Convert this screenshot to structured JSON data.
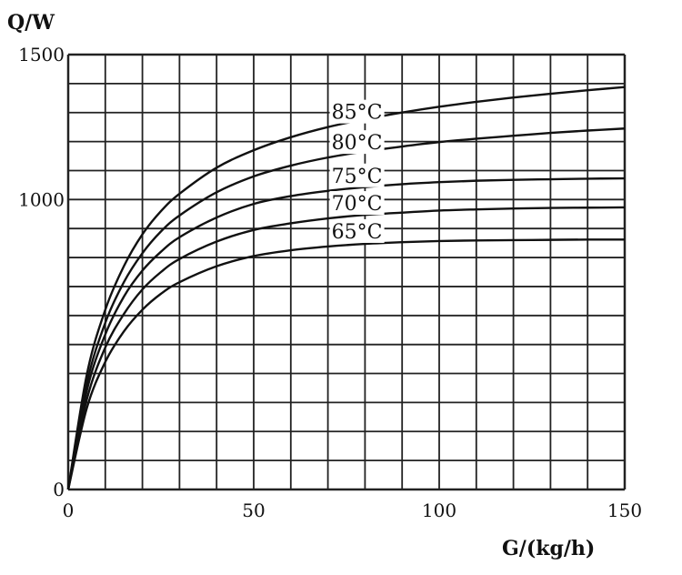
{
  "chart_data": {
    "type": "line",
    "title": "",
    "xlabel": "G/(kg/h)",
    "ylabel": "Q/W",
    "xlim": [
      0,
      150
    ],
    "ylim": [
      0,
      1500
    ],
    "x_ticks": [
      0,
      50,
      100,
      150
    ],
    "y_ticks": [
      0,
      1000,
      1500
    ],
    "x_tick_labels": [
      "0",
      "50",
      "100",
      "150"
    ],
    "y_tick_labels": [
      "0",
      "1000",
      "1500"
    ],
    "grid": true,
    "x_grid_step": 10,
    "y_grid_step": 100,
    "x": [
      0,
      5,
      10,
      15,
      20,
      25,
      30,
      40,
      50,
      60,
      70,
      80,
      90,
      100,
      110,
      120,
      130,
      140,
      150
    ],
    "series": [
      {
        "name": "85°C",
        "values": [
          0,
          395,
          620,
          770,
          880,
          960,
          1020,
          1110,
          1170,
          1215,
          1250,
          1277,
          1300,
          1320,
          1337,
          1352,
          1365,
          1377,
          1388
        ]
      },
      {
        "name": "80°C",
        "values": [
          0,
          365,
          575,
          715,
          815,
          890,
          945,
          1025,
          1080,
          1117,
          1145,
          1166,
          1183,
          1198,
          1210,
          1220,
          1230,
          1238,
          1245
        ]
      },
      {
        "name": "75°C",
        "values": [
          0,
          340,
          535,
          665,
          755,
          820,
          870,
          938,
          985,
          1012,
          1030,
          1043,
          1053,
          1060,
          1065,
          1068,
          1070,
          1072,
          1073
        ]
      },
      {
        "name": "70°C",
        "values": [
          0,
          310,
          490,
          605,
          690,
          750,
          795,
          855,
          895,
          918,
          935,
          947,
          955,
          962,
          966,
          969,
          971,
          972,
          973
        ]
      },
      {
        "name": "65°C",
        "values": [
          0,
          280,
          440,
          545,
          620,
          675,
          715,
          770,
          805,
          825,
          838,
          847,
          853,
          857,
          859,
          860,
          861,
          862,
          862
        ]
      }
    ]
  }
}
